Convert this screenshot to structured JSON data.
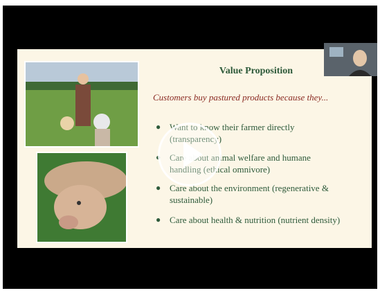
{
  "slide": {
    "title": "Value Proposition",
    "subtitle": "Customers buy pastured products because they...",
    "bullets": [
      "Want to know their farmer directly (transparency)",
      "Care about animal welfare and humane handling (ethical omnivore)",
      "Care about the environment (regenerative & sustainable)",
      "Care about health & nutrition (nutrient density)"
    ]
  }
}
